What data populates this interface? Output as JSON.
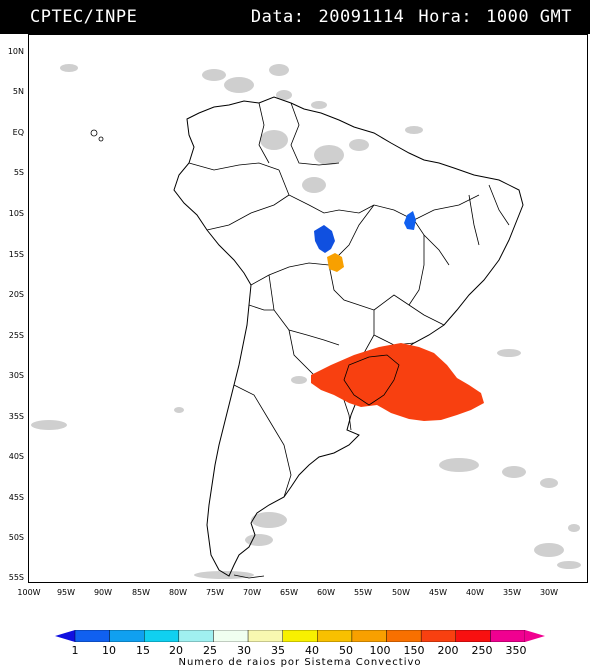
{
  "header": {
    "org": "CPTEC/INPE",
    "data_label": "Data:",
    "data_value": "20091114",
    "hora_label": "Hora:",
    "hora_value": "1000 GMT"
  },
  "lat_labels": [
    "10N",
    "5N",
    "EQ",
    "5S",
    "10S",
    "15S",
    "20S",
    "25S",
    "30S",
    "35S",
    "40S",
    "45S",
    "50S",
    "55S"
  ],
  "lon_labels": [
    "100W",
    "95W",
    "90W",
    "85W",
    "80W",
    "75W",
    "70W",
    "65W",
    "60W",
    "55W",
    "50W",
    "45W",
    "40W",
    "35W",
    "30W"
  ],
  "legend": {
    "ticks": [
      "1",
      "10",
      "15",
      "20",
      "25",
      "30",
      "35",
      "40",
      "50",
      "100",
      "150",
      "200",
      "250",
      "350"
    ],
    "caption": "Numero de raios por Sistema Convectivo",
    "colors": [
      "#1010e0",
      "#1060f0",
      "#10a0f0",
      "#10d0f0",
      "#a0f0f0",
      "#f0fff0",
      "#f8f8b0",
      "#f8f000",
      "#f8c000",
      "#f8a000",
      "#f87000",
      "#f84010",
      "#f81010",
      "#f00090"
    ]
  },
  "systems": [
    {
      "name": "blue-system-north",
      "color": "#1060f0"
    },
    {
      "name": "blue-system-central",
      "color": "#1050e0"
    },
    {
      "name": "orange-system-central",
      "color": "#f8a000"
    },
    {
      "name": "large-system-south",
      "color": "#f84010"
    }
  ]
}
